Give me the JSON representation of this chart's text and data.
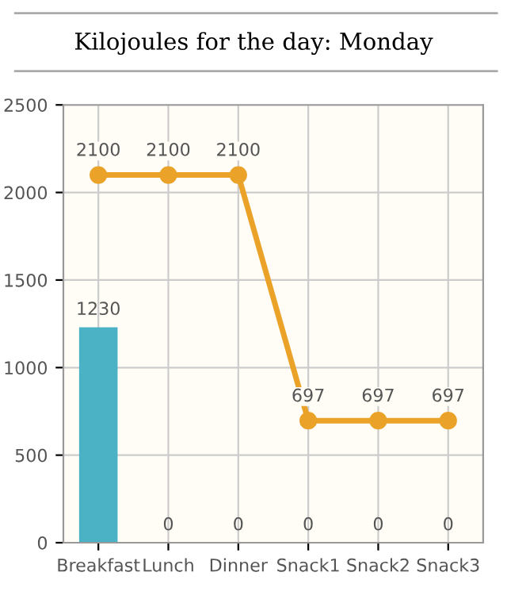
{
  "chart_data": {
    "type": "bar",
    "title": "Kilojoules for the day: Monday",
    "categories": [
      "Breakfast",
      "Lunch",
      "Dinner",
      "Snack1",
      "Snack2",
      "Snack3"
    ],
    "series": [
      {
        "color": "#4bb2c5",
        "values": [
          1230,
          0,
          0,
          0,
          0,
          0
        ]
      },
      {
        "type": "line",
        "color": "#eaa228",
        "values": [
          2100,
          2100,
          2100,
          697,
          697,
          697
        ]
      }
    ],
    "ylim": [
      0,
      2500
    ],
    "yticks": [
      0,
      500,
      1000,
      1500,
      2000,
      2500
    ],
    "grid": true,
    "data_labels": true,
    "marker": "circle",
    "line_style": "solid",
    "legend": false
  }
}
